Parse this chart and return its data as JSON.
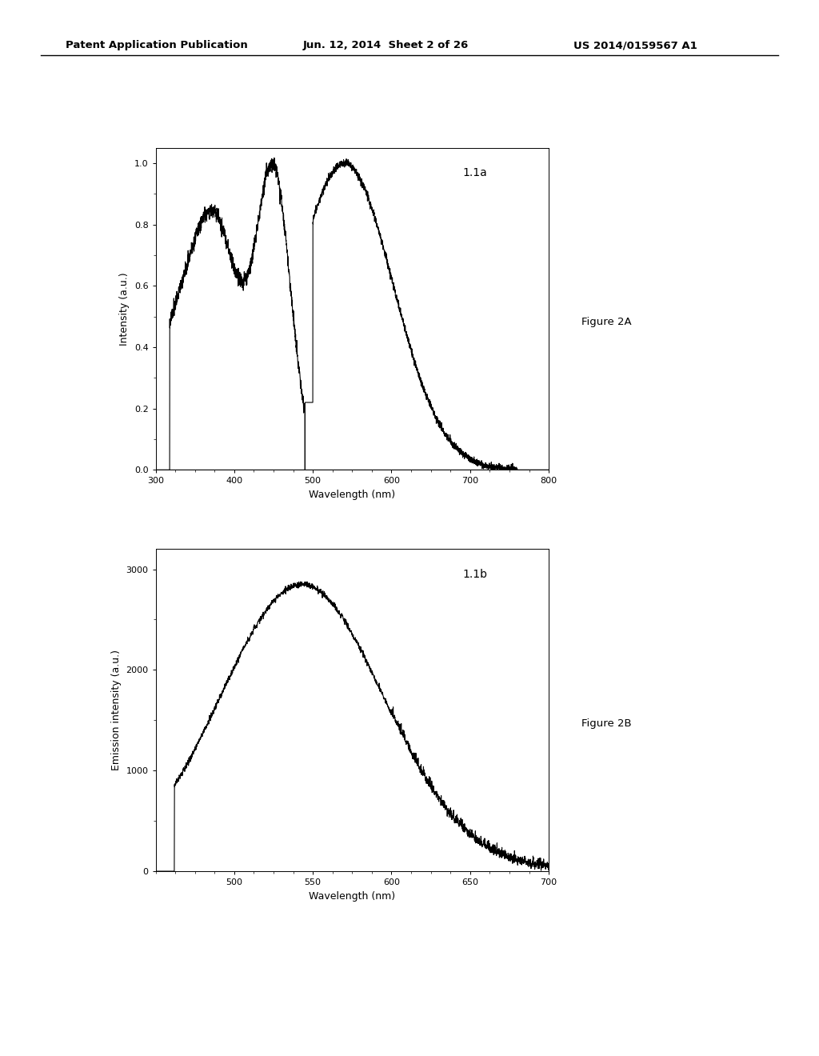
{
  "header_left": "Patent Application Publication",
  "header_mid": "Jun. 12, 2014  Sheet 2 of 26",
  "header_right": "US 2014/0159567 A1",
  "fig2a_label": "1.1a",
  "fig2a_caption": "Figure 2A",
  "fig2a_xlabel": "Wavelength (nm)",
  "fig2a_ylabel": "Intensity (a.u.)",
  "fig2a_xlim": [
    300,
    800
  ],
  "fig2a_ylim": [
    0.0,
    1.05
  ],
  "fig2a_yticks": [
    0.0,
    0.2,
    0.4,
    0.6,
    0.8,
    1.0
  ],
  "fig2a_xticks": [
    300,
    400,
    500,
    600,
    700,
    800
  ],
  "fig2b_label": "1.1b",
  "fig2b_caption": "Figure 2B",
  "fig2b_xlabel": "Wavelength (nm)",
  "fig2b_ylabel": "Emission intensity (a.u.)",
  "fig2b_xlim": [
    450,
    700
  ],
  "fig2b_ylim": [
    0,
    3200
  ],
  "fig2b_yticks": [
    0,
    1000,
    2000,
    3000
  ],
  "fig2b_xticks": [
    500,
    550,
    600,
    650,
    700
  ],
  "line_color": "#000000",
  "background_color": "#ffffff"
}
